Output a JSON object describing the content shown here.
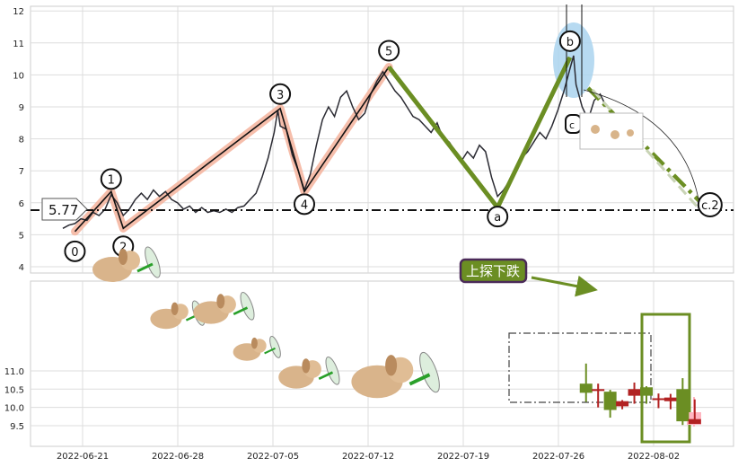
{
  "chart_data": [
    {
      "type": "line",
      "panel": "top",
      "ylim": [
        3.8,
        12.1
      ],
      "yticks": [
        4,
        5,
        6,
        7,
        8,
        9,
        10,
        11,
        12
      ],
      "grid": true,
      "price_series": [
        [
          0,
          5.2
        ],
        [
          0.5,
          5.3
        ],
        [
          1,
          5.35
        ],
        [
          1.5,
          5.5
        ],
        [
          2,
          5.45
        ],
        [
          2.5,
          5.7
        ],
        [
          3,
          5.6
        ],
        [
          3.5,
          5.8
        ],
        [
          4,
          6.25
        ],
        [
          4.5,
          6.0
        ],
        [
          5,
          5.6
        ],
        [
          5.5,
          5.8
        ],
        [
          6,
          6.1
        ],
        [
          6.5,
          6.3
        ],
        [
          7,
          6.1
        ],
        [
          7.5,
          6.4
        ],
        [
          8,
          6.2
        ],
        [
          8.5,
          6.35
        ],
        [
          9,
          6.1
        ],
        [
          9.5,
          6.0
        ],
        [
          10,
          5.8
        ],
        [
          10.5,
          5.9
        ],
        [
          11,
          5.7
        ],
        [
          11.5,
          5.85
        ],
        [
          12,
          5.7
        ],
        [
          12.5,
          5.75
        ],
        [
          13,
          5.7
        ],
        [
          13.5,
          5.8
        ],
        [
          14,
          5.7
        ],
        [
          14.5,
          5.85
        ],
        [
          15,
          5.9
        ],
        [
          15.5,
          6.1
        ],
        [
          16,
          6.3
        ],
        [
          16.5,
          6.8
        ],
        [
          17,
          7.4
        ],
        [
          17.5,
          8.2
        ],
        [
          17.8,
          8.9
        ],
        [
          18,
          8.4
        ],
        [
          18.5,
          8.3
        ],
        [
          19,
          7.5
        ],
        [
          19.5,
          7.0
        ],
        [
          20,
          6.4
        ],
        [
          20.5,
          6.9
        ],
        [
          21,
          7.8
        ],
        [
          21.5,
          8.6
        ],
        [
          22,
          9.0
        ],
        [
          22.5,
          8.7
        ],
        [
          23,
          9.3
        ],
        [
          23.5,
          9.5
        ],
        [
          24,
          9.0
        ],
        [
          24.5,
          8.6
        ],
        [
          25,
          8.8
        ],
        [
          25.5,
          9.4
        ],
        [
          26,
          9.8
        ],
        [
          26.5,
          10.1
        ],
        [
          27,
          9.8
        ],
        [
          27.5,
          9.5
        ],
        [
          28,
          9.3
        ],
        [
          28.5,
          9.0
        ],
        [
          29,
          8.7
        ],
        [
          29.5,
          8.6
        ],
        [
          30,
          8.4
        ],
        [
          30.5,
          8.2
        ],
        [
          31,
          8.5
        ],
        [
          31.5,
          8.0
        ],
        [
          32,
          7.9
        ],
        [
          32.5,
          7.6
        ],
        [
          33,
          7.3
        ],
        [
          33.5,
          7.6
        ],
        [
          34,
          7.4
        ],
        [
          34.5,
          7.8
        ],
        [
          35,
          7.6
        ],
        [
          35.5,
          6.8
        ],
        [
          36,
          6.2
        ],
        [
          36.5,
          6.4
        ],
        [
          37,
          6.7
        ],
        [
          37.5,
          7.0
        ],
        [
          38,
          7.4
        ],
        [
          38.5,
          7.6
        ],
        [
          39,
          7.9
        ],
        [
          39.5,
          8.2
        ],
        [
          40,
          8.0
        ],
        [
          40.5,
          8.4
        ],
        [
          41,
          8.9
        ],
        [
          41.5,
          9.5
        ],
        [
          42,
          10.2
        ],
        [
          42.3,
          10.6
        ],
        [
          42.5,
          9.7
        ],
        [
          43,
          9.0
        ],
        [
          43.5,
          8.6
        ],
        [
          44,
          9.2
        ],
        [
          44.5,
          9.4
        ],
        [
          45,
          9.0
        ]
      ],
      "waves": [
        {
          "label": "0",
          "x": 1,
          "y": 5.1
        },
        {
          "label": "1",
          "x": 4,
          "y": 6.35
        },
        {
          "label": "2",
          "x": 5,
          "y": 5.2
        },
        {
          "label": "3",
          "x": 18,
          "y": 8.95
        },
        {
          "label": "4",
          "x": 20,
          "y": 6.35
        },
        {
          "label": "5",
          "x": 27,
          "y": 10.25
        }
      ],
      "corrective": [
        {
          "label": "a",
          "x": 36,
          "y": 5.85
        },
        {
          "label": "b",
          "x": 42,
          "y": 10.55
        },
        {
          "label": "c.2",
          "x": 53,
          "y": 5.77
        }
      ],
      "support_level": 5.77,
      "support_label": "5.77",
      "c_box_label": "c",
      "colors": {
        "impulse": "#f4a58a",
        "corrective": "#6b8e23",
        "price": "#2b2b33",
        "ellipse": "#aad4ee"
      }
    },
    {
      "type": "candlestick",
      "panel": "bottom",
      "ylim": [
        9.25,
        11.95
      ],
      "yticks": [
        9.5,
        10.0,
        10.5,
        11.0
      ],
      "xlabels": [
        "2022-06-21",
        "2022-06-28",
        "2022-07-05",
        "2022-07-12",
        "2022-07-19",
        "2022-07-26",
        "2022-08-02"
      ],
      "candles": [
        {
          "x": 35.0,
          "open": 10.4,
          "close": 10.65,
          "high": 11.2,
          "low": 10.15,
          "up": true
        },
        {
          "x": 36.0,
          "open": 10.45,
          "close": 10.5,
          "high": 10.65,
          "low": 10.0,
          "up": false
        },
        {
          "x": 37.0,
          "open": 10.43,
          "close": 9.93,
          "high": 10.48,
          "low": 9.72,
          "up": true
        },
        {
          "x": 38.0,
          "open": 10.17,
          "close": 10.03,
          "high": 10.2,
          "low": 9.95,
          "up": false
        },
        {
          "x": 39.0,
          "open": 10.32,
          "close": 10.5,
          "high": 10.68,
          "low": 10.1,
          "up": false
        },
        {
          "x": 40.0,
          "open": 10.32,
          "close": 10.55,
          "high": 10.58,
          "low": 10.1,
          "up": true
        },
        {
          "x": 41.0,
          "open": 10.25,
          "close": 10.25,
          "high": 10.38,
          "low": 9.98,
          "up": false
        },
        {
          "x": 42.0,
          "open": 10.27,
          "close": 10.17,
          "high": 10.37,
          "low": 9.95,
          "up": false
        },
        {
          "x": 43.0,
          "open": 10.5,
          "close": 9.62,
          "high": 10.8,
          "low": 9.52,
          "up": true
        },
        {
          "x": 44.0,
          "open": 9.68,
          "close": 9.55,
          "high": 10.22,
          "low": 9.55,
          "up": false
        }
      ],
      "annotation": "上探下跌",
      "colors": {
        "up": "#6b8e23",
        "down": "#b22222"
      }
    }
  ]
}
